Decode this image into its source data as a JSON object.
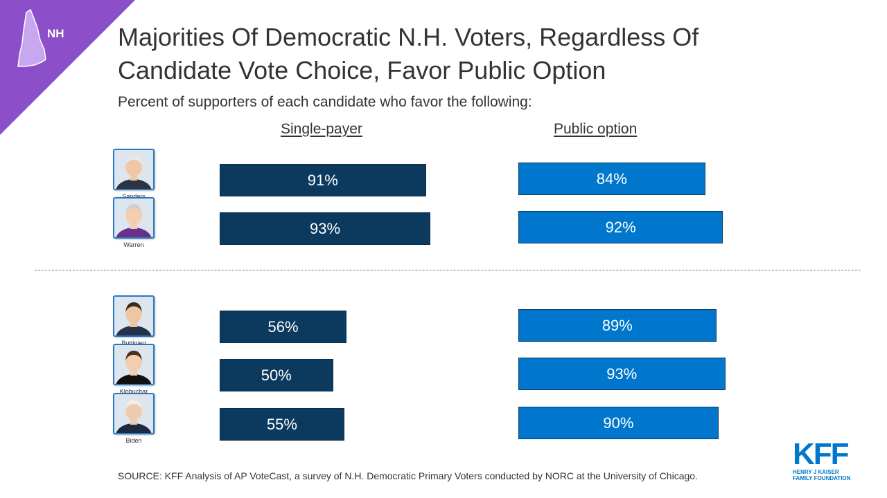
{
  "badge": {
    "label": "NH",
    "color": "#8a4fc9",
    "icon": "new-hampshire-state-icon"
  },
  "header": {
    "title": "Majorities Of Democratic N.H. Voters, Regardless Of Candidate Vote Choice, Favor Public Option",
    "subtitle": "Percent of supporters of each candidate who favor the following:"
  },
  "chart_data": {
    "type": "bar",
    "orientation": "horizontal",
    "categories": [
      "Sanders",
      "Warren",
      "Buttigieg",
      "Klobuchar",
      "Biden"
    ],
    "series": [
      {
        "name": "Single-payer",
        "values": [
          91,
          93,
          56,
          50,
          55
        ],
        "color": "#0b3a5e"
      },
      {
        "name": "Public option",
        "values": [
          84,
          92,
          89,
          93,
          90
        ],
        "color": "#0077cc"
      }
    ],
    "value_labels": {
      "Single-payer": [
        "91%",
        "93%",
        "56%",
        "50%",
        "55%"
      ],
      "Public option": [
        "84%",
        "92%",
        "89%",
        "93%",
        "90%"
      ]
    },
    "groups": [
      [
        "Sanders",
        "Warren"
      ],
      [
        "Buttigieg",
        "Klobuchar",
        "Biden"
      ]
    ],
    "xlim": [
      0,
      100
    ],
    "grid": false,
    "legend": "none"
  },
  "candidates": [
    {
      "name": "Sanders",
      "icon": "sanders-photo"
    },
    {
      "name": "Warren",
      "icon": "warren-photo"
    },
    {
      "name": "Buttigieg",
      "icon": "buttigieg-photo"
    },
    {
      "name": "Klobuchar",
      "icon": "klobuchar-photo"
    },
    {
      "name": "Biden",
      "icon": "biden-photo"
    }
  ],
  "footer": {
    "source": "SOURCE: KFF Analysis of AP VoteCast, a survey of N.H. Democratic Primary Voters conducted by NORC at the University of Chicago."
  },
  "logo": {
    "mark": "KFF",
    "line1": "HENRY J KAISER",
    "line2": "FAMILY FOUNDATION",
    "color": "#0077cc"
  }
}
